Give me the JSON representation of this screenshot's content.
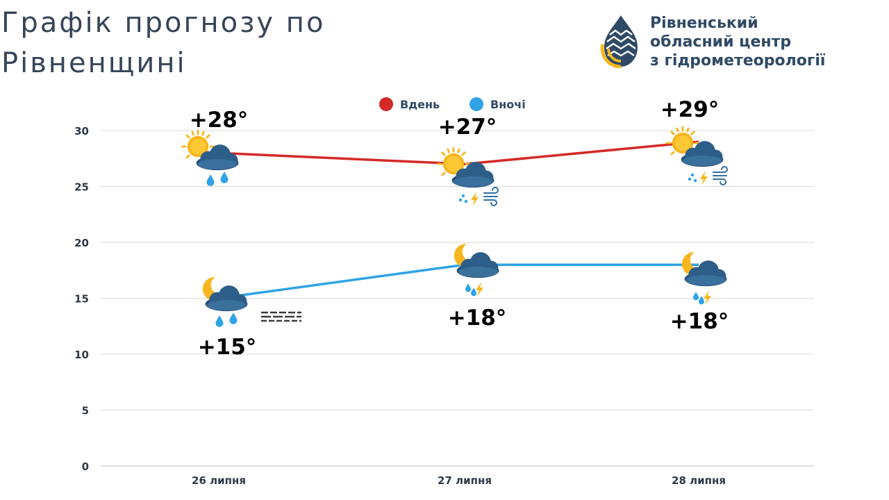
{
  "header": {
    "title_line1": "Графік прогнозу по",
    "title_line2": "Рівненщині"
  },
  "organization": {
    "name_line1": "Рівненський",
    "name_line2": "обласний центр",
    "name_line3": "з гідрометеорології",
    "logo_icon": "drop-logo-icon"
  },
  "colors": {
    "day": "#d42a27",
    "night": "#2fa3e6",
    "grid": "#d9d9d9",
    "sun": "#f7b61d",
    "cloud": "#2d5e8a"
  },
  "chart_data": {
    "type": "line",
    "categories": [
      "26 липня",
      "27 липня",
      "28 липня"
    ],
    "ylim": [
      0,
      30
    ],
    "yticks": [
      0,
      5,
      10,
      15,
      20,
      25,
      30
    ],
    "grid": true,
    "legend_position": "top-center",
    "series": [
      {
        "name": "Вдень",
        "key": "day",
        "values": [
          28,
          27,
          29
        ],
        "labels": [
          "+28°",
          "+27°",
          "+29°"
        ],
        "icons": [
          "sun-cloud-rain-icon",
          "sun-cloud-thunder-wind-icon",
          "sun-cloud-thunder-wind-icon"
        ]
      },
      {
        "name": "Вночі",
        "key": "night",
        "values": [
          15,
          18,
          18
        ],
        "labels": [
          "+15°",
          "+18°",
          "+18°"
        ],
        "icons": [
          "moon-cloud-rain-fog-icon",
          "moon-cloud-thunder-rain-icon",
          "moon-cloud-thunder-rain-icon"
        ]
      }
    ]
  }
}
